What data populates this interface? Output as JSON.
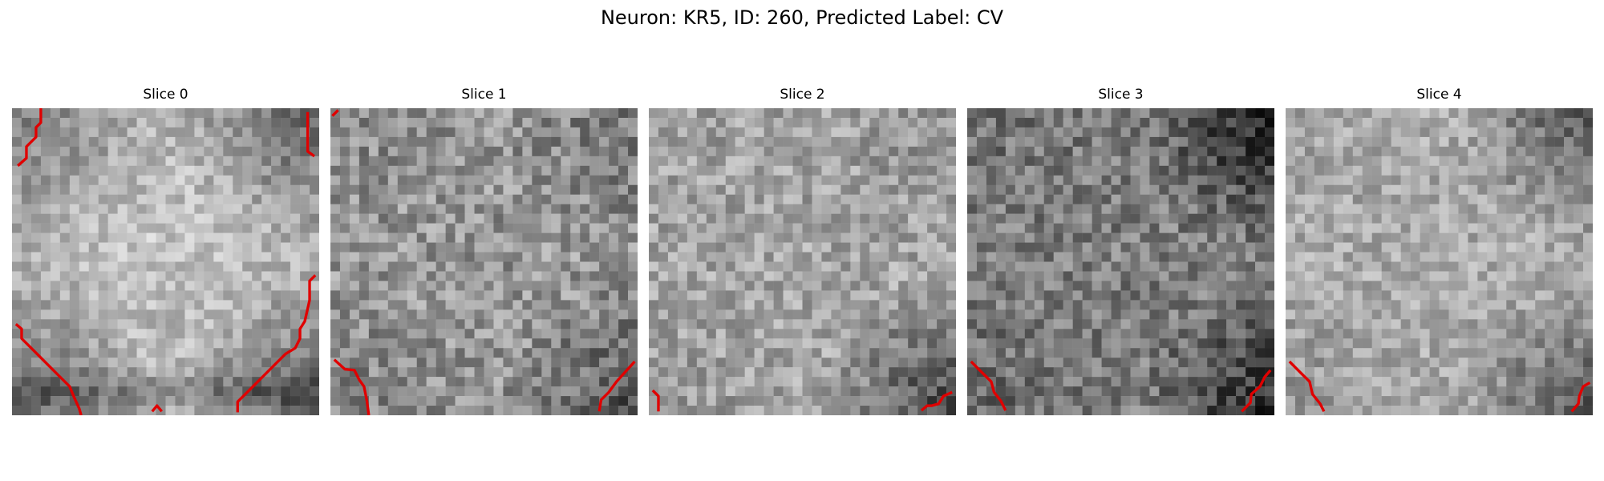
{
  "figure": {
    "title": "Neuron: KR5, ID: 260, Predicted Label: CV"
  },
  "panels": [
    {
      "title": "Slice 0"
    },
    {
      "title": "Slice 1"
    },
    {
      "title": "Slice 2"
    },
    {
      "title": "Slice 3"
    },
    {
      "title": "Slice 4"
    }
  ],
  "colors": {
    "contour": "#e00000",
    "background": "#ffffff"
  }
}
